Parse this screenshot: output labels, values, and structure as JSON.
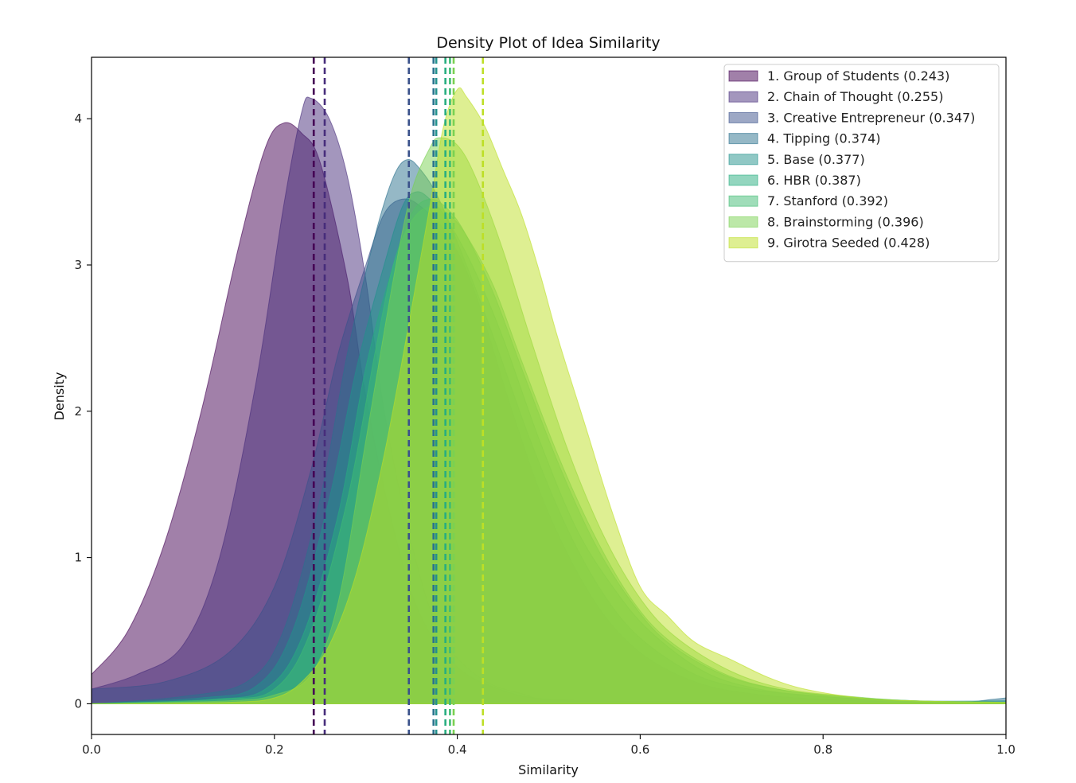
{
  "chart_data": {
    "type": "area",
    "title": "Density Plot of Idea Similarity",
    "xlabel": "Similarity",
    "ylabel": "Density",
    "xlim": [
      0.0,
      1.0
    ],
    "ylim": [
      -0.21,
      4.42
    ],
    "xticks": [
      0.0,
      0.2,
      0.4,
      0.6,
      0.8,
      1.0
    ],
    "xtick_labels": [
      "0.0",
      "0.2",
      "0.4",
      "0.6",
      "0.8",
      "1.0"
    ],
    "yticks": [
      0,
      1,
      2,
      3,
      4
    ],
    "ytick_labels": [
      "0",
      "1",
      "2",
      "3",
      "4"
    ],
    "grid": false,
    "legend_position": "top-right",
    "series": [
      {
        "name": "1. Group of Students (0.243)",
        "mean": 0.243,
        "color": "#440154",
        "points": [
          [
            0,
            0.2
          ],
          [
            0.04,
            0.5
          ],
          [
            0.08,
            1.1
          ],
          [
            0.12,
            2.0
          ],
          [
            0.16,
            3.1
          ],
          [
            0.19,
            3.8
          ],
          [
            0.21,
            3.97
          ],
          [
            0.23,
            3.9
          ],
          [
            0.25,
            3.7
          ],
          [
            0.28,
            2.9
          ],
          [
            0.3,
            2.1
          ],
          [
            0.33,
            1.2
          ],
          [
            0.36,
            0.6
          ],
          [
            0.4,
            0.25
          ],
          [
            0.45,
            0.09
          ],
          [
            0.5,
            0.03
          ],
          [
            0.6,
            0.01
          ],
          [
            1.0,
            0.0
          ]
        ]
      },
      {
        "name": "2. Chain of Thought (0.255)",
        "mean": 0.255,
        "color": "#472d7b",
        "points": [
          [
            0,
            0.1
          ],
          [
            0.05,
            0.2
          ],
          [
            0.1,
            0.4
          ],
          [
            0.14,
            1.0
          ],
          [
            0.18,
            2.2
          ],
          [
            0.21,
            3.4
          ],
          [
            0.23,
            4.05
          ],
          [
            0.24,
            4.14
          ],
          [
            0.26,
            4.0
          ],
          [
            0.28,
            3.6
          ],
          [
            0.3,
            2.9
          ],
          [
            0.32,
            2.0
          ],
          [
            0.35,
            1.1
          ],
          [
            0.38,
            0.5
          ],
          [
            0.42,
            0.2
          ],
          [
            0.47,
            0.07
          ],
          [
            0.55,
            0.02
          ],
          [
            1.0,
            0.0
          ]
        ]
      },
      {
        "name": "3. Creative Entrepreneur (0.347)",
        "mean": 0.347,
        "color": "#3b528b",
        "points": [
          [
            0,
            0.1
          ],
          [
            0.08,
            0.15
          ],
          [
            0.15,
            0.35
          ],
          [
            0.2,
            0.8
          ],
          [
            0.24,
            1.6
          ],
          [
            0.27,
            2.4
          ],
          [
            0.3,
            3.0
          ],
          [
            0.32,
            3.35
          ],
          [
            0.34,
            3.45
          ],
          [
            0.36,
            3.4
          ],
          [
            0.39,
            3.2
          ],
          [
            0.42,
            2.8
          ],
          [
            0.46,
            2.0
          ],
          [
            0.5,
            1.3
          ],
          [
            0.55,
            0.7
          ],
          [
            0.6,
            0.35
          ],
          [
            0.66,
            0.15
          ],
          [
            0.72,
            0.07
          ],
          [
            0.8,
            0.03
          ],
          [
            0.9,
            0.01
          ],
          [
            1.0,
            0.0
          ]
        ]
      },
      {
        "name": "4. Tipping (0.374)",
        "mean": 0.374,
        "color": "#2c728e",
        "points": [
          [
            0,
            0.0
          ],
          [
            0.1,
            0.05
          ],
          [
            0.17,
            0.15
          ],
          [
            0.21,
            0.5
          ],
          [
            0.25,
            1.4
          ],
          [
            0.28,
            2.4
          ],
          [
            0.31,
            3.2
          ],
          [
            0.33,
            3.6
          ],
          [
            0.345,
            3.72
          ],
          [
            0.36,
            3.65
          ],
          [
            0.38,
            3.45
          ],
          [
            0.41,
            3.0
          ],
          [
            0.44,
            2.5
          ],
          [
            0.48,
            1.8
          ],
          [
            0.52,
            1.2
          ],
          [
            0.56,
            0.75
          ],
          [
            0.6,
            0.45
          ],
          [
            0.66,
            0.2
          ],
          [
            0.72,
            0.1
          ],
          [
            0.8,
            0.05
          ],
          [
            0.88,
            0.02
          ],
          [
            0.95,
            0.01
          ],
          [
            0.985,
            0.03
          ],
          [
            1.0,
            0.04
          ]
        ]
      },
      {
        "name": "5. Base (0.377)",
        "mean": 0.377,
        "color": "#21918c",
        "points": [
          [
            0,
            0.0
          ],
          [
            0.12,
            0.04
          ],
          [
            0.18,
            0.12
          ],
          [
            0.22,
            0.5
          ],
          [
            0.26,
            1.4
          ],
          [
            0.29,
            2.3
          ],
          [
            0.32,
            3.0
          ],
          [
            0.34,
            3.4
          ],
          [
            0.355,
            3.5
          ],
          [
            0.37,
            3.45
          ],
          [
            0.39,
            3.3
          ],
          [
            0.42,
            2.95
          ],
          [
            0.45,
            2.5
          ],
          [
            0.49,
            1.8
          ],
          [
            0.53,
            1.2
          ],
          [
            0.57,
            0.8
          ],
          [
            0.61,
            0.5
          ],
          [
            0.67,
            0.22
          ],
          [
            0.73,
            0.1
          ],
          [
            0.8,
            0.05
          ],
          [
            0.9,
            0.02
          ],
          [
            1.0,
            0.02
          ]
        ]
      },
      {
        "name": "6. HBR (0.387)",
        "mean": 0.387,
        "color": "#28ae80",
        "points": [
          [
            0,
            0.0
          ],
          [
            0.13,
            0.03
          ],
          [
            0.19,
            0.1
          ],
          [
            0.23,
            0.45
          ],
          [
            0.27,
            1.3
          ],
          [
            0.3,
            2.3
          ],
          [
            0.33,
            3.0
          ],
          [
            0.35,
            3.35
          ],
          [
            0.37,
            3.45
          ],
          [
            0.39,
            3.38
          ],
          [
            0.41,
            3.2
          ],
          [
            0.44,
            2.8
          ],
          [
            0.47,
            2.3
          ],
          [
            0.51,
            1.65
          ],
          [
            0.55,
            1.1
          ],
          [
            0.59,
            0.7
          ],
          [
            0.63,
            0.42
          ],
          [
            0.69,
            0.2
          ],
          [
            0.75,
            0.1
          ],
          [
            0.82,
            0.05
          ],
          [
            0.9,
            0.02
          ],
          [
            1.0,
            0.01
          ]
        ]
      },
      {
        "name": "7. Stanford (0.392)",
        "mean": 0.392,
        "color": "#3fbc73",
        "points": [
          [
            0,
            0.0
          ],
          [
            0.14,
            0.03
          ],
          [
            0.2,
            0.1
          ],
          [
            0.24,
            0.5
          ],
          [
            0.28,
            1.4
          ],
          [
            0.31,
            2.4
          ],
          [
            0.33,
            3.0
          ],
          [
            0.35,
            3.3
          ],
          [
            0.37,
            3.4
          ],
          [
            0.39,
            3.35
          ],
          [
            0.41,
            3.2
          ],
          [
            0.44,
            2.85
          ],
          [
            0.47,
            2.35
          ],
          [
            0.51,
            1.7
          ],
          [
            0.55,
            1.15
          ],
          [
            0.59,
            0.72
          ],
          [
            0.63,
            0.44
          ],
          [
            0.69,
            0.21
          ],
          [
            0.75,
            0.1
          ],
          [
            0.82,
            0.05
          ],
          [
            0.9,
            0.02
          ],
          [
            1.0,
            0.01
          ]
        ]
      },
      {
        "name": "8. Brainstorming (0.396)",
        "mean": 0.396,
        "color": "#7ad151",
        "points": [
          [
            0,
            0.0
          ],
          [
            0.15,
            0.02
          ],
          [
            0.2,
            0.06
          ],
          [
            0.24,
            0.2
          ],
          [
            0.27,
            0.7
          ],
          [
            0.3,
            1.8
          ],
          [
            0.33,
            2.9
          ],
          [
            0.35,
            3.5
          ],
          [
            0.37,
            3.8
          ],
          [
            0.38,
            3.87
          ],
          [
            0.4,
            3.82
          ],
          [
            0.42,
            3.6
          ],
          [
            0.45,
            3.1
          ],
          [
            0.48,
            2.5
          ],
          [
            0.52,
            1.75
          ],
          [
            0.56,
            1.15
          ],
          [
            0.6,
            0.72
          ],
          [
            0.64,
            0.45
          ],
          [
            0.7,
            0.22
          ],
          [
            0.76,
            0.1
          ],
          [
            0.83,
            0.05
          ],
          [
            0.9,
            0.02
          ],
          [
            1.0,
            0.01
          ]
        ]
      },
      {
        "name": "9. Girotra Seeded (0.428)",
        "mean": 0.428,
        "color": "#bddf26",
        "points": [
          [
            0,
            0.0
          ],
          [
            0.15,
            0.01
          ],
          [
            0.2,
            0.04
          ],
          [
            0.23,
            0.15
          ],
          [
            0.26,
            0.4
          ],
          [
            0.29,
            0.9
          ],
          [
            0.32,
            1.7
          ],
          [
            0.35,
            2.7
          ],
          [
            0.37,
            3.4
          ],
          [
            0.385,
            3.95
          ],
          [
            0.4,
            4.2
          ],
          [
            0.41,
            4.15
          ],
          [
            0.43,
            3.95
          ],
          [
            0.45,
            3.65
          ],
          [
            0.47,
            3.35
          ],
          [
            0.49,
            2.95
          ],
          [
            0.51,
            2.5
          ],
          [
            0.54,
            1.9
          ],
          [
            0.57,
            1.3
          ],
          [
            0.6,
            0.8
          ],
          [
            0.63,
            0.6
          ],
          [
            0.66,
            0.42
          ],
          [
            0.7,
            0.3
          ],
          [
            0.74,
            0.18
          ],
          [
            0.78,
            0.1
          ],
          [
            0.84,
            0.04
          ],
          [
            0.9,
            0.02
          ],
          [
            1.0,
            0.01
          ]
        ]
      }
    ]
  }
}
